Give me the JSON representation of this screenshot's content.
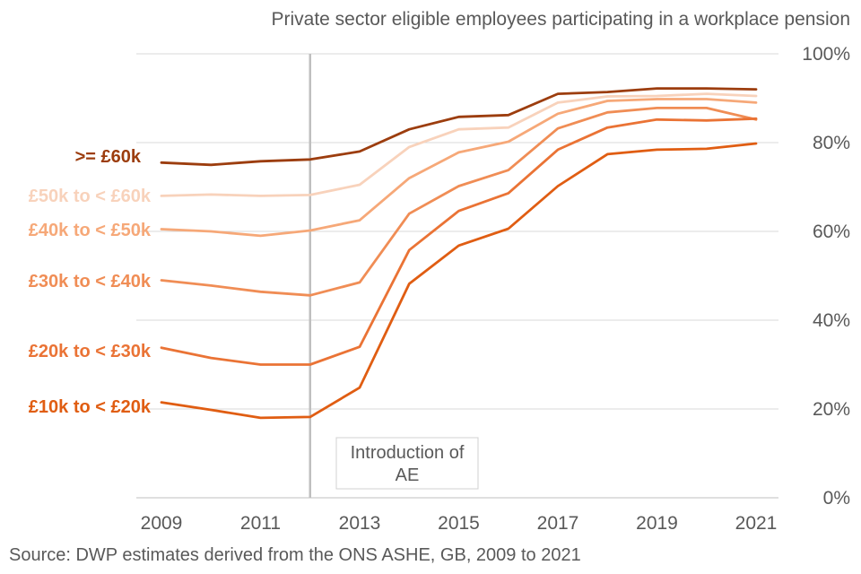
{
  "chart_data": {
    "type": "line",
    "title": "Private sector eligible employees participating in a workplace pension",
    "source": "Source: DWP estimates derived from the ONS ASHE, GB, 2009 to 2021",
    "x": [
      2009,
      2010,
      2011,
      2012,
      2013,
      2014,
      2015,
      2016,
      2017,
      2018,
      2019,
      2020,
      2021
    ],
    "x_tick_labels": [
      "2009",
      "2011",
      "2013",
      "2015",
      "2017",
      "2019",
      "2021"
    ],
    "x_tick_values": [
      2009,
      2011,
      2013,
      2015,
      2017,
      2019,
      2021
    ],
    "y_tick_labels": [
      "0%",
      "20%",
      "40%",
      "60%",
      "80%",
      "100%"
    ],
    "y_tick_values": [
      0,
      20,
      40,
      60,
      80,
      100
    ],
    "ylim": [
      0,
      100
    ],
    "y_axis_side": "right",
    "grid": "horizontal",
    "legend": "none",
    "annotation": {
      "x": 2012,
      "lines": [
        "Introduction of",
        "AE"
      ]
    },
    "series": [
      {
        "name": ">= £60k",
        "color": "#9c3d0e",
        "values": [
          75.5,
          75,
          75.8,
          76.2,
          78,
          83,
          85.8,
          86.2,
          91,
          91.4,
          92.2,
          92.2,
          92
        ]
      },
      {
        "name": "£50k to < £60k",
        "color": "#f8d2bb",
        "values": [
          68,
          68.3,
          68,
          68.2,
          70.5,
          79,
          83,
          83.4,
          89,
          90.4,
          90.5,
          91,
          90.5
        ]
      },
      {
        "name": "£40k to < £50k",
        "color": "#f6a878",
        "values": [
          60.5,
          60,
          59,
          60.2,
          62.5,
          72,
          77.8,
          80.2,
          86.5,
          89.4,
          89.8,
          89.8,
          89
        ]
      },
      {
        "name": "£30k to < £40k",
        "color": "#f08d55",
        "values": [
          49,
          47.8,
          46.4,
          45.6,
          48.5,
          64,
          70.2,
          73.8,
          83.2,
          86.8,
          87.8,
          87.8,
          85.2
        ]
      },
      {
        "name": "£20k to < £30k",
        "color": "#ea7335",
        "values": [
          33.8,
          31.5,
          30,
          30,
          34,
          55.8,
          64.6,
          68.6,
          78.4,
          83.4,
          85.2,
          85,
          85.4
        ]
      },
      {
        "name": "£10k to < £20k",
        "color": "#e05d12",
        "values": [
          21.5,
          19.8,
          18,
          18.2,
          24.8,
          48.2,
          56.8,
          60.6,
          70.2,
          77.4,
          78.4,
          78.6,
          79.8
        ]
      }
    ]
  }
}
